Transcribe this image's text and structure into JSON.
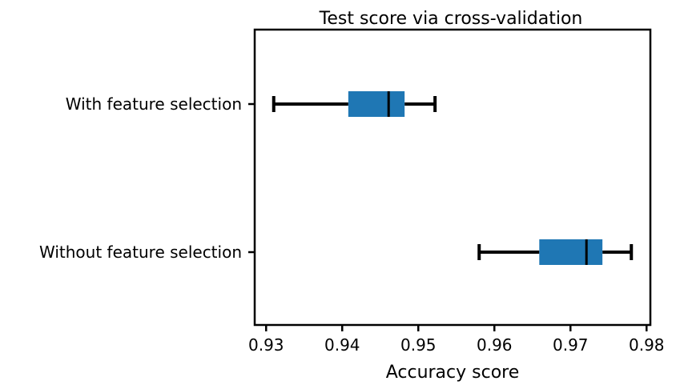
{
  "chart_data": {
    "type": "box",
    "orientation": "horizontal",
    "title": "Test score via cross-validation",
    "xlabel": "Accuracy score",
    "ylabel": "",
    "xlim": [
      0.9285,
      0.9805
    ],
    "xticks": [
      0.93,
      0.94,
      0.95,
      0.96,
      0.97,
      0.98
    ],
    "xtick_labels": [
      "0.93",
      "0.94",
      "0.95",
      "0.96",
      "0.97",
      "0.98"
    ],
    "grid": false,
    "box_color": "#1f77b4",
    "line_color": "#000000",
    "categories": [
      "With feature selection",
      "Without feature selection"
    ],
    "boxes": [
      {
        "label": "With feature selection",
        "whisker_low": 0.931,
        "q1": 0.9408,
        "median": 0.9461,
        "q3": 0.9482,
        "whisker_high": 0.9522
      },
      {
        "label": "Without feature selection",
        "whisker_low": 0.958,
        "q1": 0.9659,
        "median": 0.9721,
        "q3": 0.9742,
        "whisker_high": 0.978
      }
    ]
  }
}
